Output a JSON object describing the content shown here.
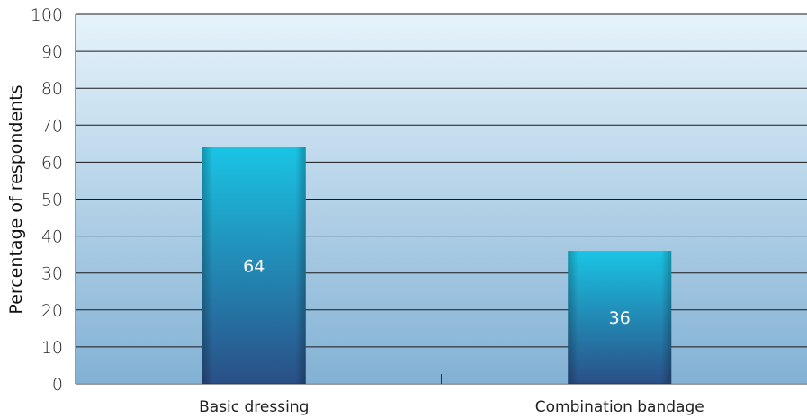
{
  "chart_data": {
    "type": "bar",
    "title": "",
    "xlabel": "",
    "ylabel": "Percentage of respondents",
    "categories": [
      "Basic dressing",
      "Combination bandage"
    ],
    "values": [
      64,
      36
    ],
    "ylim": [
      0,
      100
    ],
    "yticks": [
      0,
      10,
      20,
      30,
      40,
      50,
      60,
      70,
      80,
      90,
      100
    ],
    "grid": true,
    "legend": "none",
    "data_labels": [
      "64",
      "36"
    ],
    "colors": {
      "bar_top": "#1ac4e4",
      "bar_bottom": "#2a4f86",
      "plot_bg_top": "#e6f3fb",
      "plot_bg_bottom": "#82b1d4",
      "gridline": "#1a1a1a"
    }
  }
}
